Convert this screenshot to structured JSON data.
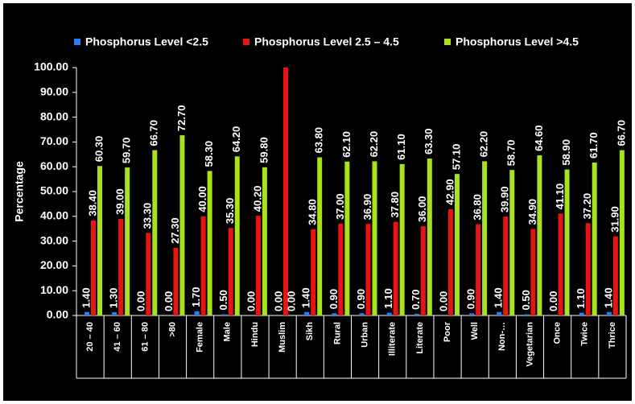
{
  "chart_data": {
    "type": "bar",
    "y_label": "Percentage",
    "categories": [
      "20 – 40",
      "41 – 60",
      "61 – 80",
      ">80",
      "Female",
      "Male",
      "Hindu",
      "Muslim",
      "Sikh",
      "Rural",
      "Urban",
      "Illiterate",
      "Literate",
      "Poor",
      "Well",
      "Non-…",
      "Vegetarian",
      "Once",
      "Twice",
      "Thrice"
    ],
    "series": [
      {
        "name": "Phosphorus Level <2.5",
        "color": "#2a7ff0",
        "values": [
          1.4,
          1.3,
          0,
          0,
          1.7,
          0.5,
          0,
          0,
          1.4,
          0.9,
          0.9,
          1.1,
          0.7,
          0,
          0.9,
          1.4,
          0.5,
          0,
          1.1,
          1.4
        ],
        "value_labels": [
          "1.40",
          "1.30",
          "0.00",
          "0.00",
          "1.70",
          "0.50",
          "0.00",
          "0.00",
          "1.40",
          "0.90",
          "0.90",
          "1.10",
          "0.70",
          "0.00",
          "0.90",
          "1.40",
          "0.50",
          "0.00",
          "1.10",
          "1.40"
        ]
      },
      {
        "name": "Phosphorus Level 2.5 – 4.5",
        "color": "#e81414",
        "values": [
          38.4,
          39,
          33.3,
          27.3,
          40,
          35.3,
          40.2,
          100,
          34.8,
          37,
          36.9,
          37.8,
          36,
          42.9,
          36.8,
          39.9,
          34.9,
          41.1,
          37.2,
          31.9
        ],
        "value_labels": [
          "38.40",
          "39.00",
          "33.30",
          "27.30",
          "40.00",
          "35.30",
          "40.20",
          null,
          "34.80",
          "37.00",
          "36.90",
          "37.80",
          "36.00",
          "42.90",
          "36.80",
          "39.90",
          "34.90",
          "41.10",
          "37.20",
          "31.90"
        ]
      },
      {
        "name": "Phosphorus Level >4.5",
        "color": "#a8e21c",
        "values": [
          60.3,
          59.7,
          66.7,
          72.7,
          58.3,
          64.2,
          59.8,
          0,
          63.8,
          62.1,
          62.2,
          61.1,
          63.3,
          57.1,
          62.2,
          58.7,
          64.6,
          58.9,
          61.7,
          66.7
        ],
        "value_labels": [
          "60.30",
          "59.70",
          "66.70",
          "72.70",
          "58.30",
          "64.20",
          "59.80",
          "0.00",
          "63.80",
          "62.10",
          "62.20",
          "61.10",
          "63.30",
          "57.10",
          "62.20",
          "58.70",
          "64.60",
          "58.90",
          "61.70",
          "66.70"
        ]
      }
    ],
    "ylim": [
      0,
      100
    ],
    "yticks": [
      {
        "value": 0,
        "label": "0.00"
      },
      {
        "value": 10,
        "label": "10.00"
      },
      {
        "value": 20,
        "label": "20.00"
      },
      {
        "value": 30,
        "label": "30.00"
      },
      {
        "value": 40,
        "label": "40.00"
      },
      {
        "value": 50,
        "label": "50.00"
      },
      {
        "value": 60,
        "label": "60.00"
      },
      {
        "value": 70,
        "label": "70.00"
      },
      {
        "value": 80,
        "label": "80.00"
      },
      {
        "value": 90,
        "label": "90.00"
      },
      {
        "value": 100,
        "label": "100.00"
      }
    ],
    "legend": "top"
  }
}
